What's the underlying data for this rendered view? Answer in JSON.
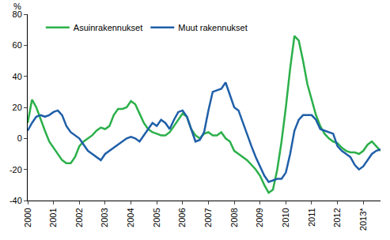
{
  "chart_data": {
    "type": "line",
    "y_label": "%",
    "categories": [
      "2000",
      null,
      null,
      null,
      null,
      null,
      "2001",
      null,
      null,
      null,
      null,
      null,
      "2002",
      null,
      null,
      null,
      null,
      null,
      "2003",
      null,
      null,
      null,
      null,
      null,
      "2004",
      null,
      null,
      null,
      null,
      null,
      "2005",
      null,
      null,
      null,
      null,
      null,
      "2006",
      null,
      null,
      null,
      null,
      null,
      "2007",
      null,
      null,
      null,
      null,
      null,
      "2008",
      null,
      null,
      null,
      null,
      null,
      "2009",
      null,
      null,
      null,
      null,
      null,
      "2010",
      null,
      null,
      null,
      null,
      null,
      "2011",
      null,
      null,
      null,
      null,
      null,
      "2012",
      null,
      null,
      null,
      null,
      null,
      "2013*",
      null,
      null,
      null,
      null
    ],
    "series": [
      {
        "name": "Asuinrakennukset",
        "color": "#2bb04a",
        "values": [
          10,
          25,
          20,
          12,
          5,
          -2,
          -6,
          -10,
          -14,
          -16,
          -16,
          -12,
          -5,
          -2,
          0,
          2,
          5,
          7,
          6,
          8,
          15,
          19,
          19,
          20,
          24,
          22,
          16,
          10,
          6,
          4,
          3,
          2,
          2,
          4,
          8,
          12,
          16,
          14,
          6,
          2,
          0,
          3,
          4,
          2,
          2,
          4,
          0,
          -2,
          -8,
          -10,
          -12,
          -14,
          -17,
          -20,
          -24,
          -30,
          -35,
          -33,
          -20,
          -2,
          20,
          45,
          66,
          63,
          50,
          35,
          25,
          15,
          8,
          3,
          0,
          -2,
          -3,
          -6,
          -8,
          -9,
          -9,
          -10,
          -8,
          -4,
          -2,
          -5,
          -8
        ]
      },
      {
        "name": "Muut rakennukset",
        "color": "#1f5fa8",
        "values": [
          5,
          10,
          14,
          15,
          14,
          15,
          17,
          18,
          15,
          8,
          4,
          2,
          0,
          -4,
          -8,
          -10,
          -12,
          -14,
          -10,
          -8,
          -6,
          -4,
          -2,
          0,
          1,
          0,
          -2,
          2,
          6,
          10,
          8,
          12,
          10,
          6,
          12,
          17,
          18,
          14,
          6,
          -2,
          -1,
          4,
          18,
          30,
          31,
          32,
          36,
          28,
          20,
          18,
          10,
          2,
          -5,
          -12,
          -18,
          -24,
          -28,
          -27,
          -26,
          -26,
          -22,
          -10,
          5,
          12,
          15,
          15,
          15,
          12,
          6,
          5,
          4,
          3,
          -5,
          -8,
          -10,
          -12,
          -17,
          -20,
          -18,
          -14,
          -10,
          -8,
          -7
        ]
      }
    ],
    "ylim": [
      -40,
      80
    ],
    "yticks": [
      -40,
      -20,
      0,
      20,
      40,
      60,
      80
    ],
    "grid": false,
    "legend": "top left"
  }
}
